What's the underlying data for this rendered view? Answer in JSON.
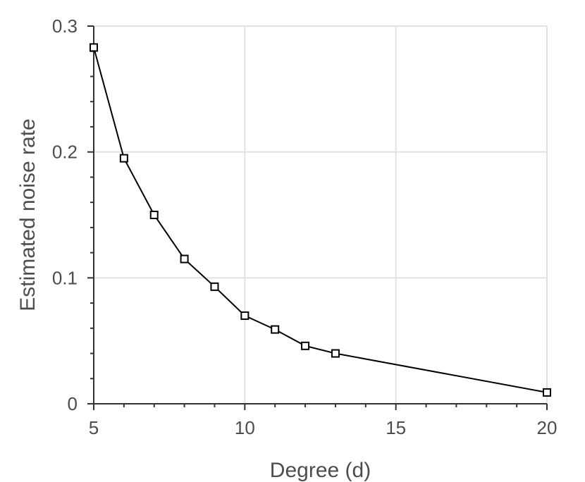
{
  "chart_data": {
    "type": "line",
    "title": "",
    "xlabel": "Degree (d)",
    "ylabel": "Estimated noise rate",
    "xlim": [
      5,
      20
    ],
    "ylim": [
      0,
      0.3
    ],
    "xticks": [
      5,
      10,
      15,
      20
    ],
    "yticks": [
      0,
      0.1,
      0.2,
      0.3
    ],
    "xtick_labels": [
      "5",
      "10",
      "15",
      "20"
    ],
    "ytick_labels": [
      "0",
      "0.1",
      "0.2",
      "0.3"
    ],
    "grid": true,
    "series": [
      {
        "marker": "square",
        "color": "#000000",
        "x": [
          5,
          6,
          7,
          8,
          9,
          10,
          11,
          12,
          13,
          20
        ],
        "y": [
          0.283,
          0.195,
          0.15,
          0.115,
          0.093,
          0.07,
          0.059,
          0.046,
          0.04,
          0.009
        ]
      }
    ]
  }
}
